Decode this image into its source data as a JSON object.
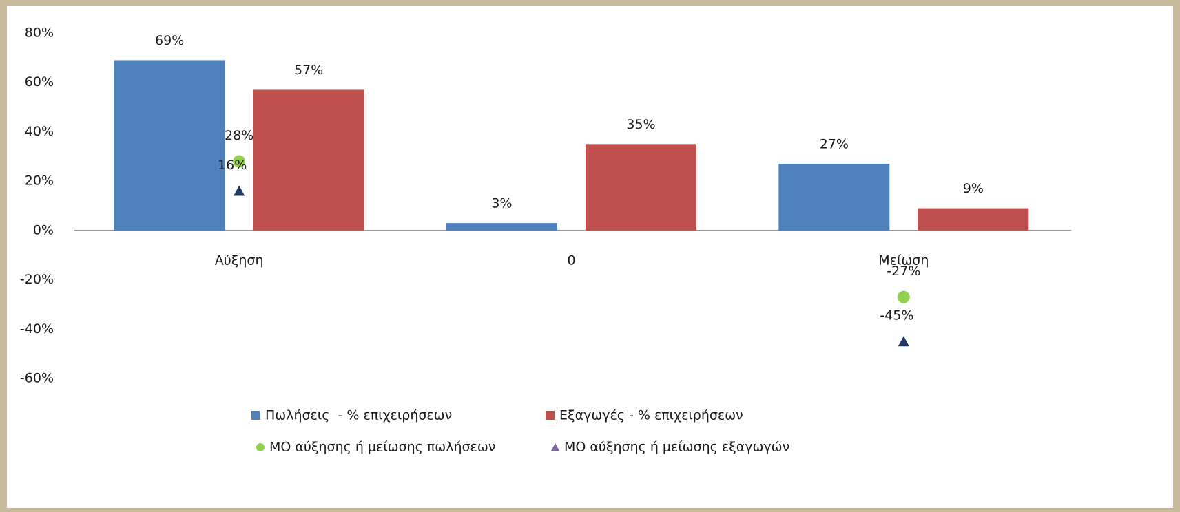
{
  "chart_data": {
    "type": "bar",
    "categories": [
      "Αύξηση",
      "0",
      "Μείωση"
    ],
    "ylim": [
      -60,
      80
    ],
    "yticks": [
      {
        "value": -60,
        "label": "-60%"
      },
      {
        "value": -40,
        "label": "-40%"
      },
      {
        "value": -20,
        "label": "-20%"
      },
      {
        "value": 0,
        "label": "0%"
      },
      {
        "value": 20,
        "label": "20%"
      },
      {
        "value": 40,
        "label": "40%"
      },
      {
        "value": 60,
        "label": "60%"
      },
      {
        "value": 80,
        "label": "80%"
      }
    ],
    "grid": false,
    "legend": "bottom",
    "series": [
      {
        "name": "Πωλήσεις  - % επιχειρήσεων",
        "type": "bar",
        "color": "#4f81bd",
        "values": [
          69,
          3,
          27
        ],
        "value_labels": [
          "69%",
          "3%",
          "27%"
        ]
      },
      {
        "name": "Εξαγωγές - % επιχειρήσεων",
        "type": "bar",
        "color": "#c0504d",
        "values": [
          57,
          35,
          9
        ],
        "value_labels": [
          "57%",
          "35%",
          "9%"
        ]
      },
      {
        "name": "ΜΟ αύξησης ή μείωσης πωλήσεων",
        "type": "scatter",
        "marker": "circle",
        "color": "#92d050",
        "values": [
          28,
          null,
          -27
        ],
        "value_labels": [
          "28%",
          null,
          "-27%"
        ]
      },
      {
        "name": "ΜΟ αύξησης ή μείωσης εξαγωγών",
        "type": "scatter",
        "marker": "triangle",
        "color": "#1f3864",
        "legend_color": "#8064a2",
        "values": [
          16,
          null,
          -45
        ],
        "value_labels": [
          "16%",
          null,
          "-45%"
        ]
      }
    ]
  }
}
